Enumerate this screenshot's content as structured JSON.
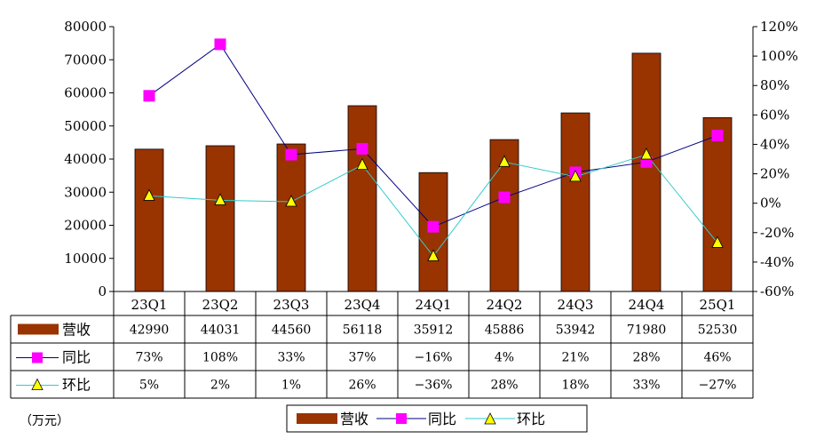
{
  "chart_data": {
    "type": "bar",
    "categories": [
      "23Q1",
      "23Q2",
      "23Q3",
      "23Q4",
      "24Q1",
      "24Q2",
      "24Q3",
      "24Q4",
      "25Q1"
    ],
    "series": [
      {
        "name": "营收",
        "type": "bar",
        "axis": "left",
        "color": "#993300",
        "values": [
          42990,
          44031,
          44560,
          56118,
          35912,
          45886,
          53942,
          71980,
          52530
        ],
        "labels": [
          "42990",
          "44031",
          "44560",
          "56118",
          "35912",
          "45886",
          "53942",
          "71980",
          "52530"
        ]
      },
      {
        "name": "同比",
        "type": "line",
        "axis": "right",
        "color": "#000080",
        "marker_color": "#ff00ff",
        "marker": "square",
        "values": [
          73,
          108,
          33,
          37,
          -16,
          4,
          21,
          28,
          46
        ],
        "labels": [
          "73%",
          "108%",
          "33%",
          "37%",
          "−16%",
          "4%",
          "21%",
          "28%",
          "46%"
        ]
      },
      {
        "name": "环比",
        "type": "line",
        "axis": "right",
        "color": "#33cccc",
        "marker_color": "#ffff00",
        "marker": "triangle",
        "values": [
          5,
          2,
          1,
          26,
          -36,
          28,
          18,
          33,
          -27
        ],
        "labels": [
          "5%",
          "2%",
          "1%",
          "26%",
          "−36%",
          "28%",
          "18%",
          "33%",
          "−27%"
        ]
      }
    ],
    "y_left": {
      "min": 0,
      "max": 80000,
      "step": 10000,
      "ticks": [
        "0",
        "10000",
        "20000",
        "30000",
        "40000",
        "50000",
        "60000",
        "70000",
        "80000"
      ]
    },
    "y_right": {
      "min": -60,
      "max": 120,
      "step": 20,
      "ticks": [
        "-60%",
        "-40%",
        "-20%",
        "0%",
        "20%",
        "40%",
        "60%",
        "80%",
        "100%",
        "120%"
      ]
    },
    "unit_label": "（万元）",
    "legend": {
      "placement": "bottom",
      "entries": [
        "营收",
        "同比",
        "环比"
      ]
    },
    "data_table": true,
    "grid": false
  }
}
